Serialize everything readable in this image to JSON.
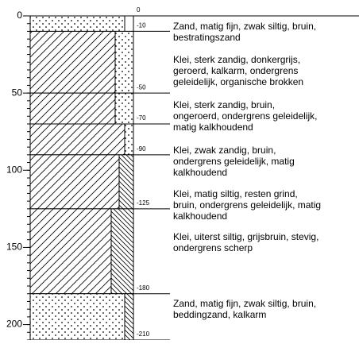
{
  "axis": {
    "ylim": [
      0,
      210
    ],
    "yticks": [
      0,
      50,
      100,
      150,
      200
    ],
    "minor_step": 5
  },
  "boundaries": [
    {
      "value": 0,
      "label": "0"
    },
    {
      "value": -10,
      "label": "-10"
    },
    {
      "value": -50,
      "label": "-50"
    },
    {
      "value": -70,
      "label": "-70"
    },
    {
      "value": -90,
      "label": "-90"
    },
    {
      "value": -125,
      "label": "-125"
    },
    {
      "value": -180,
      "label": "-180"
    },
    {
      "value": -210,
      "label": "-210"
    }
  ],
  "layers": [
    {
      "main": "sand",
      "admixture": "none",
      "description": [
        "Zand, matig fijn, zwak siltig, bruin,",
        "bestratingszand"
      ]
    },
    {
      "main": "clay",
      "admixture": "sand-strong",
      "description": [
        "Klei, sterk zandig, donkergrijs,",
        "geroerd, kalkarm, ondergrens",
        "geleidelijk, organische brokken"
      ]
    },
    {
      "main": "clay",
      "admixture": "sand-strong",
      "description": [
        "Klei, sterk zandig, bruin,",
        "ongeroerd, ondergrens geleidelijk,",
        "matig kalkhoudend"
      ]
    },
    {
      "main": "clay",
      "admixture": "sand-weak",
      "description": [
        "Klei, zwak zandig, bruin,",
        "ondergrens geleidelijk, matig",
        "kalkhoudend"
      ]
    },
    {
      "main": "clay",
      "admixture": "silt-medium",
      "description": [
        "Klei, matig siltig, resten grind,",
        "bruin, ondergrens geleidelijk, matig",
        "kalkhoudend"
      ]
    },
    {
      "main": "clay",
      "admixture": "silt-strong",
      "description": [
        "Klei, uiterst siltig, grijsbruin, stevig,",
        "ondergrens scherp"
      ]
    },
    {
      "main": "sand",
      "admixture": "silt-weak",
      "description": [
        "Zand, matig fijn, zwak siltig, bruin,",
        "beddingzand, kalkarm"
      ]
    }
  ]
}
